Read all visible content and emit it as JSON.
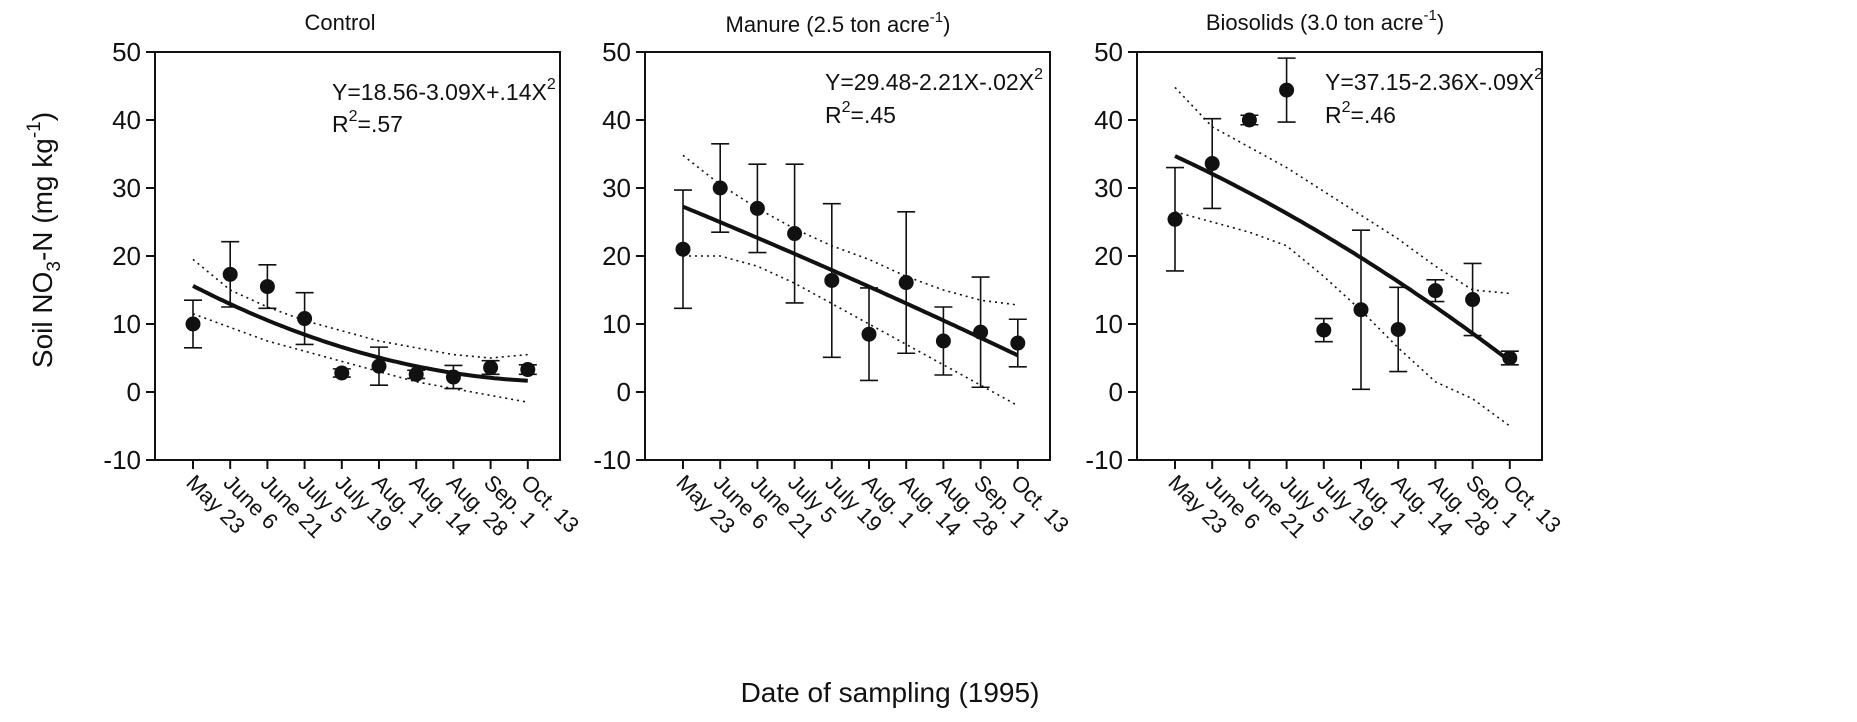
{
  "figure": {
    "xlabel": "Date of sampling (1995)",
    "ylabel_main": "Soil NO",
    "ylabel_sub": "3",
    "ylabel_rest": "-N (mg kg",
    "ylabel_sup": "-1",
    "ylabel_close": ")"
  },
  "chart_data": [
    {
      "type": "scatter",
      "title": "Control",
      "title_sup": "",
      "title_close": "",
      "equation": "Y=18.56-3.09X+.14X",
      "equation_sup": "2",
      "r2_prefix": "R",
      "r2_sup": "2",
      "r2_value": "=.57",
      "ylim": [
        -10,
        50
      ],
      "yticks": [
        -10,
        0,
        10,
        20,
        30,
        40,
        50
      ],
      "categories": [
        "May 23",
        "June 6",
        "June 21",
        "July 5",
        "July 19",
        "Aug. 1",
        "Aug. 14",
        "Aug. 28",
        "Sep. 1",
        "Oct. 13"
      ],
      "values": [
        10,
        17.3,
        15.5,
        10.8,
        2.8,
        3.8,
        2.6,
        2.2,
        3.6,
        3.3
      ],
      "error": [
        3.5,
        4.8,
        3.2,
        3.8,
        0.6,
        2.8,
        0.6,
        1.7,
        1.0,
        0.7
      ],
      "fit": {
        "a": 18.56,
        "b": -3.09,
        "c": 0.14
      },
      "ci_upper": [
        19.5,
        15.0,
        12.5,
        10.5,
        9.0,
        7.5,
        6.5,
        5.5,
        5.0,
        5.5
      ],
      "ci_lower": [
        11.5,
        9.5,
        7.5,
        6.0,
        4.5,
        3.0,
        1.5,
        0.5,
        -0.5,
        -1.5
      ],
      "grid": false
    },
    {
      "type": "scatter",
      "title": "Manure (2.5 ton acre",
      "title_sup": "-1",
      "title_close": ")",
      "equation": "Y=29.48-2.21X-.02X",
      "equation_sup": "2",
      "r2_prefix": "R",
      "r2_sup": "2",
      "r2_value": "=.45",
      "ylim": [
        -10,
        50
      ],
      "yticks": [
        -10,
        0,
        10,
        20,
        30,
        40,
        50
      ],
      "categories": [
        "May 23",
        "June 6",
        "June 21",
        "July 5",
        "July 19",
        "Aug. 1",
        "Aug. 14",
        "Aug. 28",
        "Sep. 1",
        "Oct. 13"
      ],
      "values": [
        21,
        30,
        27,
        23.3,
        16.4,
        8.5,
        16.1,
        7.5,
        8.8,
        7.2
      ],
      "error": [
        8.7,
        6.5,
        6.5,
        10.2,
        11.3,
        6.8,
        10.4,
        5.0,
        8.1,
        3.5
      ],
      "fit": {
        "a": 29.48,
        "b": -2.21,
        "c": -0.02
      },
      "ci_upper": [
        34.8,
        30.5,
        27.0,
        24.0,
        21.5,
        19.5,
        17.0,
        15.0,
        13.5,
        12.8
      ],
      "ci_lower": [
        20.0,
        20.0,
        18.5,
        16.0,
        13.0,
        10.0,
        7.0,
        4.0,
        1.0,
        -2.0
      ],
      "grid": false
    },
    {
      "type": "scatter",
      "title": "Biosolids (3.0 ton acre",
      "title_sup": "-1",
      "title_close": ")",
      "equation": "Y=37.15-2.36X-.09X",
      "equation_sup": "2",
      "r2_prefix": "R",
      "r2_sup": "2",
      "r2_value": "=.46",
      "ylim": [
        -10,
        50
      ],
      "yticks": [
        -10,
        0,
        10,
        20,
        30,
        40,
        50
      ],
      "categories": [
        "May 23",
        "June 6",
        "June 21",
        "July 5",
        "July 19",
        "Aug. 1",
        "Aug. 14",
        "Aug. 28",
        "Sep. 1",
        "Oct. 13"
      ],
      "values": [
        25.4,
        33.6,
        40,
        44.4,
        9.1,
        12.1,
        9.2,
        14.9,
        13.6,
        5
      ],
      "error": [
        7.6,
        6.6,
        0.7,
        4.7,
        1.7,
        11.7,
        6.2,
        1.6,
        5.3,
        1.0
      ],
      "fit": {
        "a": 37.15,
        "b": -2.36,
        "c": -0.09
      },
      "ci_upper": [
        44.8,
        39.0,
        36.0,
        33.0,
        29.5,
        26.0,
        22.5,
        18.5,
        15.0,
        14.5
      ],
      "ci_lower": [
        26.5,
        25.0,
        23.5,
        21.5,
        17.0,
        12.0,
        6.5,
        1.5,
        -1.0,
        -5.0
      ],
      "grid": false
    }
  ]
}
